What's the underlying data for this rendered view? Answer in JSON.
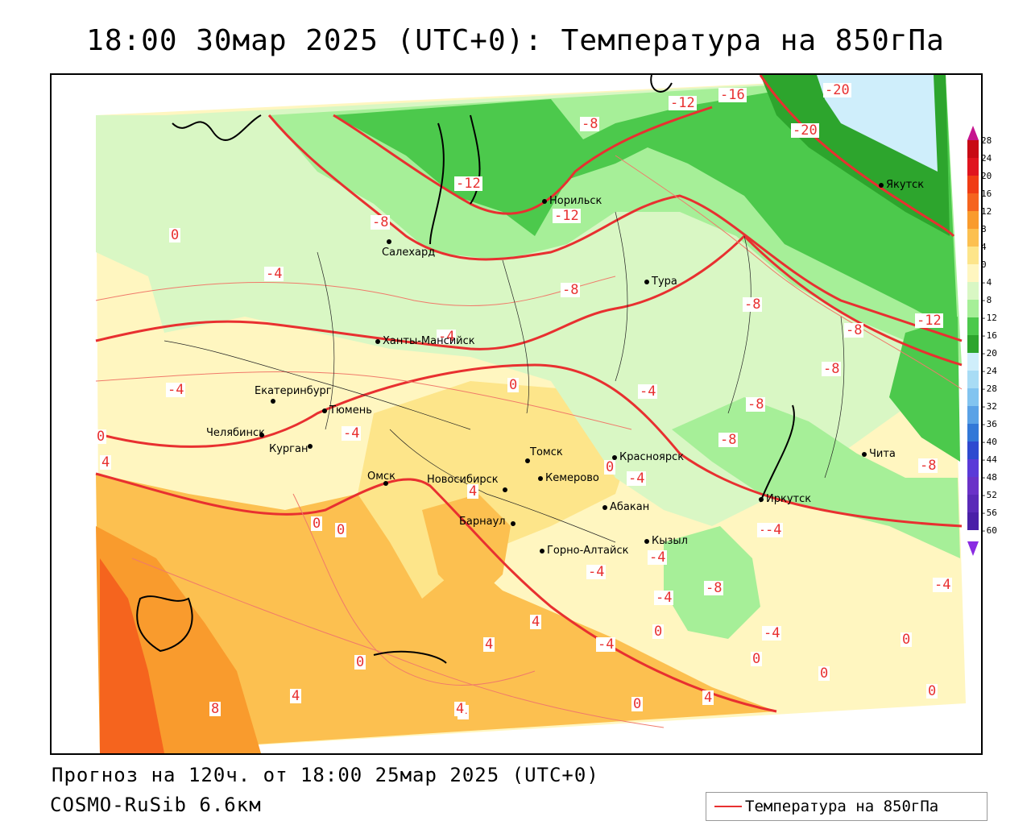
{
  "title": "18:00 30мар 2025 (UTC+0): Температура на 850гПа",
  "footer": {
    "forecast": "Прогноз на 120ч. от 18:00 25мар 2025 (UTC+0)",
    "model": "COSMO-RuSib 6.6км"
  },
  "legend": {
    "label": "Температура на 850гПа",
    "line_color": "#e83030"
  },
  "colorbar": {
    "ticks": [
      "28",
      "24",
      "20",
      "16",
      "12",
      "8",
      "4",
      "0",
      "-4",
      "-8",
      "-12",
      "-16",
      "-20",
      "-24",
      "-28",
      "-32",
      "-36",
      "-40",
      "-44",
      "-48",
      "-52",
      "-56",
      "-60"
    ],
    "colors": [
      "#c80a14",
      "#e0141e",
      "#f03c14",
      "#f5641e",
      "#f99b2d",
      "#fcc050",
      "#fde58a",
      "#fff6c0",
      "#d9f7c4",
      "#a6ef98",
      "#4cc94c",
      "#2da52d",
      "#cfeefb",
      "#a8dcf5",
      "#82c4f0",
      "#5aa2e6",
      "#3278d8",
      "#2e4ad0",
      "#5a3ad8",
      "#6a32c8",
      "#5a2ab8",
      "#4a20a8"
    ],
    "top_arrow_color": "#c6148e",
    "bottom_arrow_color": "#8a2be2"
  },
  "cities": [
    {
      "name": "Норильск"
    },
    {
      "name": "Якутск"
    },
    {
      "name": "Салехард"
    },
    {
      "name": "Тура"
    },
    {
      "name": "Ханты-Мансийск"
    },
    {
      "name": "Екатеринбург"
    },
    {
      "name": "Тюмень"
    },
    {
      "name": "Челябинск"
    },
    {
      "name": "Курган"
    },
    {
      "name": "Томск"
    },
    {
      "name": "Красноярск"
    },
    {
      "name": "Омск"
    },
    {
      "name": "Новосибирск"
    },
    {
      "name": "Кемерово"
    },
    {
      "name": "Абакан"
    },
    {
      "name": "Иркутск"
    },
    {
      "name": "Барнаул"
    },
    {
      "name": "Кызыл"
    },
    {
      "name": "Горно-Алтайск"
    },
    {
      "name": "Чита"
    }
  ],
  "contour_labels": [
    "-20",
    "-20",
    "-16",
    "-12",
    "-8",
    "-12",
    "-12",
    "-8",
    "-8",
    "-8",
    "-8",
    "-8",
    "-12",
    "-8",
    "-8",
    "-8",
    "-4",
    "-4",
    "-4",
    "-4",
    "-4",
    "0",
    "0",
    "0",
    "0",
    "0",
    "4",
    "4",
    "4",
    "4",
    "4",
    "8",
    "-4",
    "-4",
    "-8",
    "-4",
    "0",
    "0",
    "0",
    "0",
    "0",
    "4",
    "4",
    "0",
    "-4",
    "0",
    "-4",
    "0",
    "-4",
    "-4",
    "-4",
    "-4",
    "4"
  ]
}
